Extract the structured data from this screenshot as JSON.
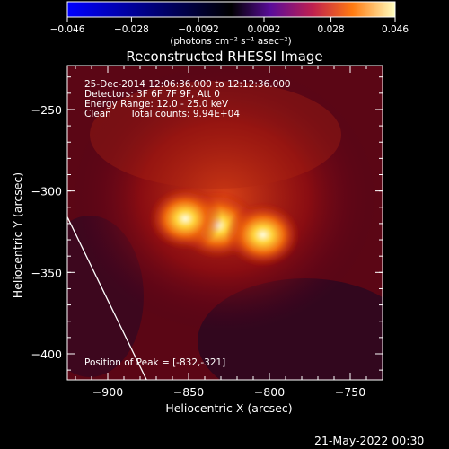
{
  "colorbar": {
    "tick_labels": [
      "−0.046",
      "−0.028",
      "−0.0092",
      "0.0092",
      "0.028",
      "0.046"
    ],
    "unit_label": "(photons cm⁻² s⁻¹ asec⁻²)",
    "min": -0.046,
    "max": 0.046
  },
  "image_title": "Reconstructed RHESSI Image",
  "info": {
    "time_range": "25-Dec-2014 12:06:36.000 to 12:12:36.000",
    "detectors": "Detectors: 3F 6F 7F 9F, Att 0",
    "energy_range": "Energy Range: 12.0 - 25.0 keV",
    "algorithm": "Clean",
    "total_counts": "Total counts: 9.94E+04"
  },
  "peak_label": "Position of Peak = [-832,-321]",
  "footer_date": "21-May-2022 00:30",
  "chart_data": {
    "type": "heatmap",
    "title": "Reconstructed RHESSI Image",
    "xlabel": "Heliocentric X (arcsec)",
    "ylabel": "Heliocentric Y (arcsec)",
    "xlim": [
      -925,
      -730
    ],
    "ylim": [
      -416,
      -223
    ],
    "x_ticks": [
      {
        "value": -900,
        "label": "−900"
      },
      {
        "value": -850,
        "label": "−850"
      },
      {
        "value": -800,
        "label": "−800"
      },
      {
        "value": -750,
        "label": "−750"
      }
    ],
    "y_ticks": [
      {
        "value": -250,
        "label": "−250"
      },
      {
        "value": -300,
        "label": "−300"
      },
      {
        "value": -350,
        "label": "−350"
      },
      {
        "value": -400,
        "label": "−400"
      }
    ],
    "colormap": "hot",
    "peak": {
      "x": -832,
      "y": -321
    },
    "sources": [
      {
        "x": -832,
        "y": -321,
        "relative_intensity": 1.0
      },
      {
        "x": -852,
        "y": -317,
        "relative_intensity": 0.8
      },
      {
        "x": -804,
        "y": -327,
        "relative_intensity": 0.85
      }
    ],
    "limb_line": [
      [
        -925,
        -316
      ],
      [
        -876,
        -416
      ]
    ]
  }
}
